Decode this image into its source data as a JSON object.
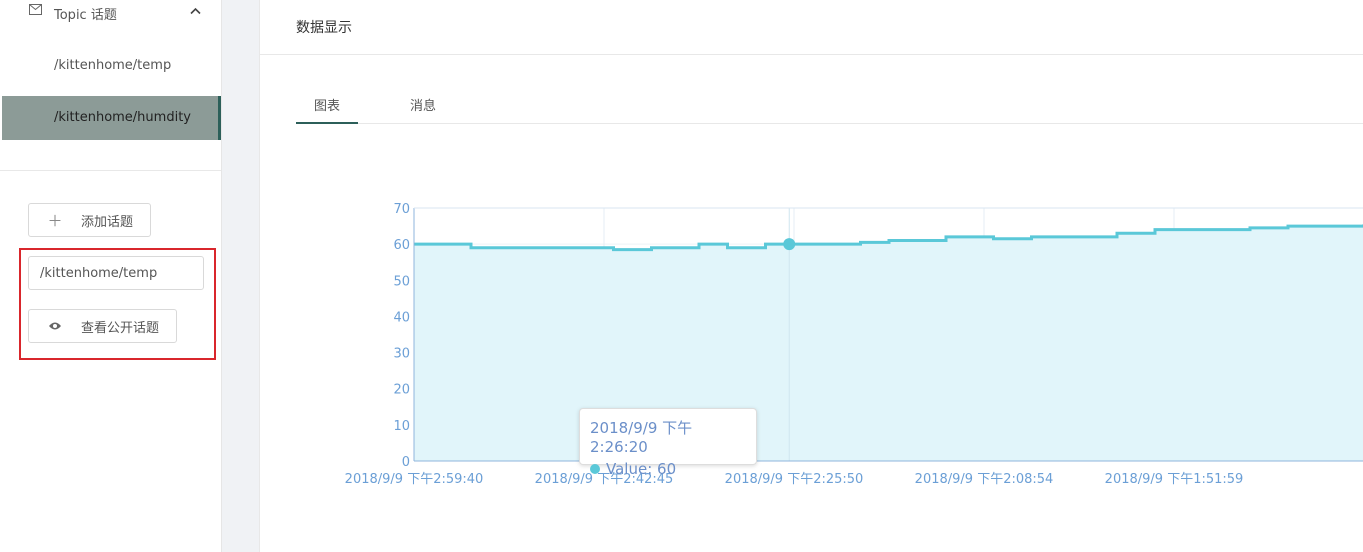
{
  "sidebar": {
    "menu_title": "Topic 话题",
    "items": [
      {
        "label": "/kittenhome/temp",
        "active": false
      },
      {
        "label": "/kittenhome/humdity",
        "active": true
      }
    ],
    "add_topic_label": "添加话题",
    "topic_input_value": "/kittenhome/temp",
    "view_public_label": "查看公开话题"
  },
  "main": {
    "title": "数据显示",
    "tabs": [
      {
        "label": "图表",
        "active": true
      },
      {
        "label": "消息",
        "active": false
      }
    ]
  },
  "colors": {
    "line": "#5ac8d8",
    "area": "#e1f5fa",
    "axis_text": "#6b9fd6",
    "active_menu": "#8c9b97",
    "accent": "#2c5f59",
    "highlight_box": "#d9262c"
  },
  "chart_data": {
    "type": "area",
    "y_ticks": [
      0,
      10,
      20,
      30,
      40,
      50,
      60,
      70
    ],
    "ylim": [
      0,
      70
    ],
    "x_ticks": [
      "2018/9/9 下午2:59:40",
      "2018/9/9 下午2:42:45",
      "2018/9/9 下午2:25:50",
      "2018/9/9 下午2:08:54",
      "2018/9/9 下午1:51:59"
    ],
    "x_tick_positions": [
      0,
      0.2,
      0.4,
      0.6,
      0.8
    ],
    "series": [
      {
        "x": [
          0,
          0.03,
          0.06,
          0.1,
          0.15,
          0.2,
          0.21,
          0.25,
          0.28,
          0.3,
          0.33,
          0.37,
          0.4,
          0.43,
          0.47,
          0.5,
          0.52,
          0.56,
          0.58,
          0.61,
          0.65,
          0.68,
          0.72,
          0.74,
          0.78,
          0.82,
          0.85,
          0.88,
          0.92,
          0.96,
          1.0
        ],
        "values": [
          60,
          60,
          59,
          59,
          59,
          59,
          58.5,
          59,
          59,
          60,
          59,
          60,
          60,
          60,
          60.5,
          61,
          61,
          62,
          62,
          61.5,
          62,
          62,
          62,
          63,
          64,
          64,
          64,
          64.5,
          65,
          65,
          65.5
        ]
      }
    ],
    "tooltip": {
      "title": "2018/9/9 下午2:26:20",
      "label": "Value",
      "value": 60,
      "x": 0.395
    }
  }
}
